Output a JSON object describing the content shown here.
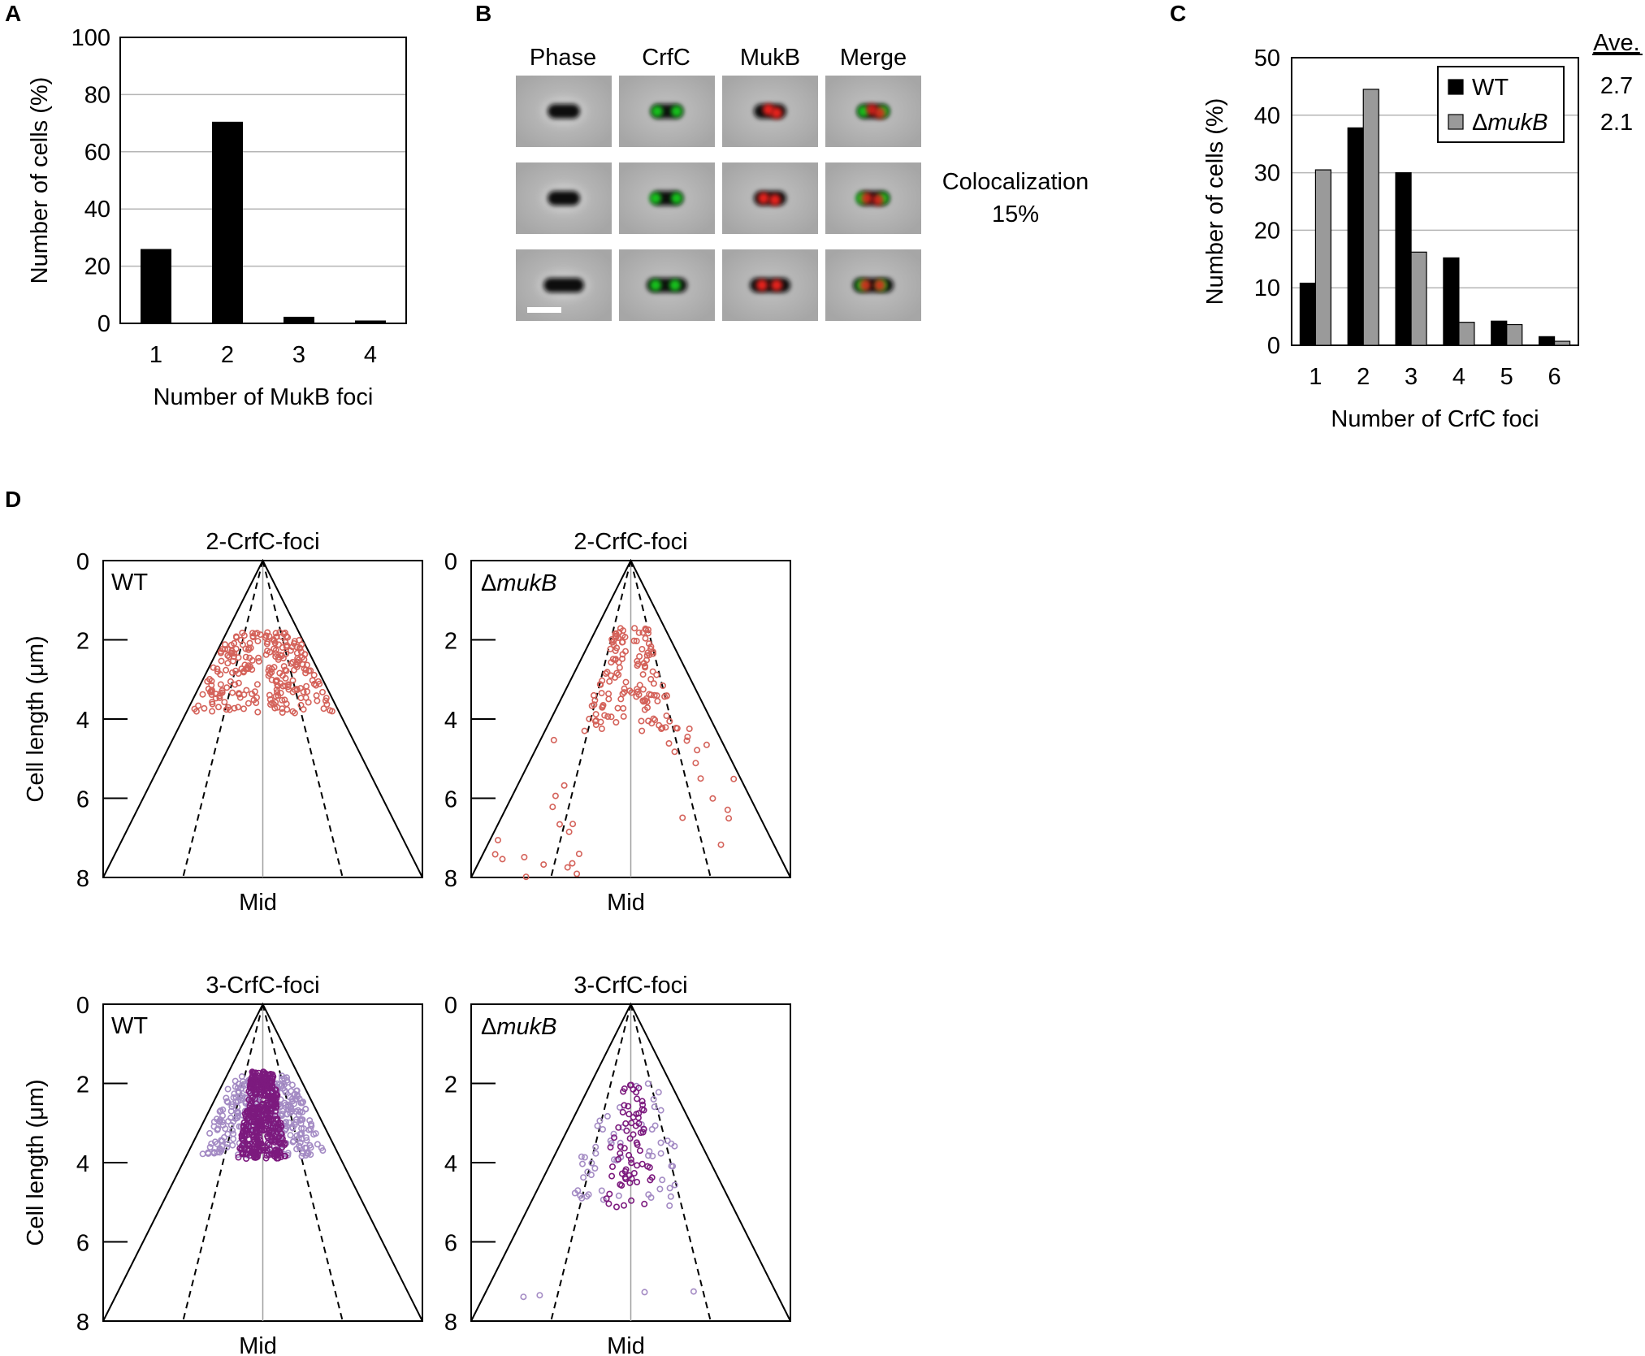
{
  "panels": {
    "A": {
      "letter": "A"
    },
    "B": {
      "letter": "B",
      "column_headers": [
        "Phase",
        "CrfC",
        "MukB",
        "Merge"
      ],
      "colocalization_label": "Colocalization",
      "colocalization_value": "15%"
    },
    "C": {
      "letter": "C",
      "ave_header": "Ave.",
      "ave_values": [
        "2.7",
        "2.1"
      ]
    },
    "D": {
      "letter": "D",
      "mid_label": "Mid"
    }
  },
  "colors": {
    "wt_bar": "#000000",
    "mukb_bar": "#9a9a9a",
    "red_dots": "#d4625a",
    "purple_light": "#a48bc4",
    "purple_dark": "#7c1a7e",
    "micro_bg": "#a8a8a8",
    "green_signal": "#16c21b",
    "red_signal": "#e5201f"
  },
  "chart_data": [
    {
      "id": "A",
      "type": "bar",
      "categories": [
        "1",
        "2",
        "3",
        "4"
      ],
      "values": [
        26,
        70.5,
        2.3,
        1
      ],
      "title": "",
      "xlabel": "Number of MukB foci",
      "ylabel": "Number of cells (%)",
      "ylim": [
        0,
        100
      ],
      "yticks": [
        "0",
        "20",
        "40",
        "60",
        "80",
        "100"
      ],
      "grid": true
    },
    {
      "id": "C",
      "type": "bar",
      "categories": [
        "1",
        "2",
        "3",
        "4",
        "5",
        "6"
      ],
      "series": [
        {
          "name": "WT",
          "values": [
            10.8,
            37.8,
            30,
            15.2,
            4.2,
            1.5
          ]
        },
        {
          "name": "ΔmukB",
          "values": [
            30.5,
            44.5,
            16.2,
            4,
            3.6,
            0.7
          ]
        }
      ],
      "xlabel": "Number of CrfC foci",
      "ylabel": "Number of cells (%)",
      "ylim": [
        0,
        50
      ],
      "yticks": [
        "0",
        "10",
        "20",
        "30",
        "40",
        "50"
      ],
      "legend": "top-right",
      "grid": true
    },
    {
      "id": "D1",
      "type": "scatter",
      "title": "2-CrfC-foci",
      "strain": "WT",
      "ylabel": "Cell length (μm)",
      "xlabel": "Mid",
      "ylim": [
        0,
        8
      ],
      "yticks": [
        "0",
        "2",
        "4",
        "6",
        "8"
      ],
      "clusters": [
        {
          "color": "red",
          "count": 260,
          "x": [
            -0.92,
            -0.06
          ],
          "y": [
            1.8,
            3.85
          ],
          "shape": "wedge"
        }
      ]
    },
    {
      "id": "D2",
      "type": "scatter",
      "title": "2-CrfC-foci",
      "strain": "ΔmukB",
      "ylabel": "",
      "xlabel": "Mid",
      "ylim": [
        0,
        8
      ],
      "yticks": [
        "0",
        "2",
        "4",
        "6",
        "8"
      ],
      "clusters": [
        {
          "color": "red",
          "count": 130,
          "x": [
            -0.55,
            -0.08
          ],
          "y": [
            1.7,
            4.3
          ],
          "shape": "wedge"
        },
        {
          "color": "red",
          "count": 35,
          "x": [
            -0.95,
            -0.3
          ],
          "y": [
            4.2,
            8.0
          ],
          "shape": "sparse"
        },
        {
          "color": "red",
          "count": 8,
          "x": [
            -0.15,
            0.1
          ],
          "y": [
            3.0,
            3.5
          ],
          "shape": "mid"
        }
      ]
    },
    {
      "id": "D3",
      "type": "scatter",
      "title": "3-CrfC-foci",
      "strain": "WT",
      "ylabel": "Cell length (μm)",
      "xlabel": "Mid",
      "ylim": [
        0,
        8
      ],
      "yticks": [
        "0",
        "2",
        "4",
        "6",
        "8"
      ],
      "clusters": [
        {
          "color": "purple_light",
          "count": 340,
          "x": [
            -0.82,
            -0.05
          ],
          "y": [
            1.8,
            3.85
          ],
          "shape": "wedge"
        },
        {
          "color": "purple_dark",
          "count": 420,
          "x": [
            -0.32,
            0.32
          ],
          "y": [
            1.7,
            3.9
          ],
          "shape": "block"
        }
      ]
    },
    {
      "id": "D4",
      "type": "scatter",
      "title": "3-CrfC-foci",
      "strain": "ΔmukB",
      "ylabel": "",
      "xlabel": "Mid",
      "ylim": [
        0,
        8
      ],
      "yticks": [
        "0",
        "2",
        "4",
        "6",
        "8"
      ],
      "clusters": [
        {
          "color": "purple_light",
          "count": 60,
          "x": [
            -0.65,
            -0.12
          ],
          "y": [
            2.0,
            5.2
          ],
          "shape": "wedge"
        },
        {
          "color": "purple_dark",
          "count": 70,
          "x": [
            -0.3,
            0.25
          ],
          "y": [
            2.0,
            5.2
          ],
          "shape": "block"
        },
        {
          "color": "purple_light",
          "count": 4,
          "x": [
            -0.75,
            0.7
          ],
          "y": [
            7.2,
            7.4
          ],
          "shape": "sparse"
        }
      ]
    }
  ]
}
